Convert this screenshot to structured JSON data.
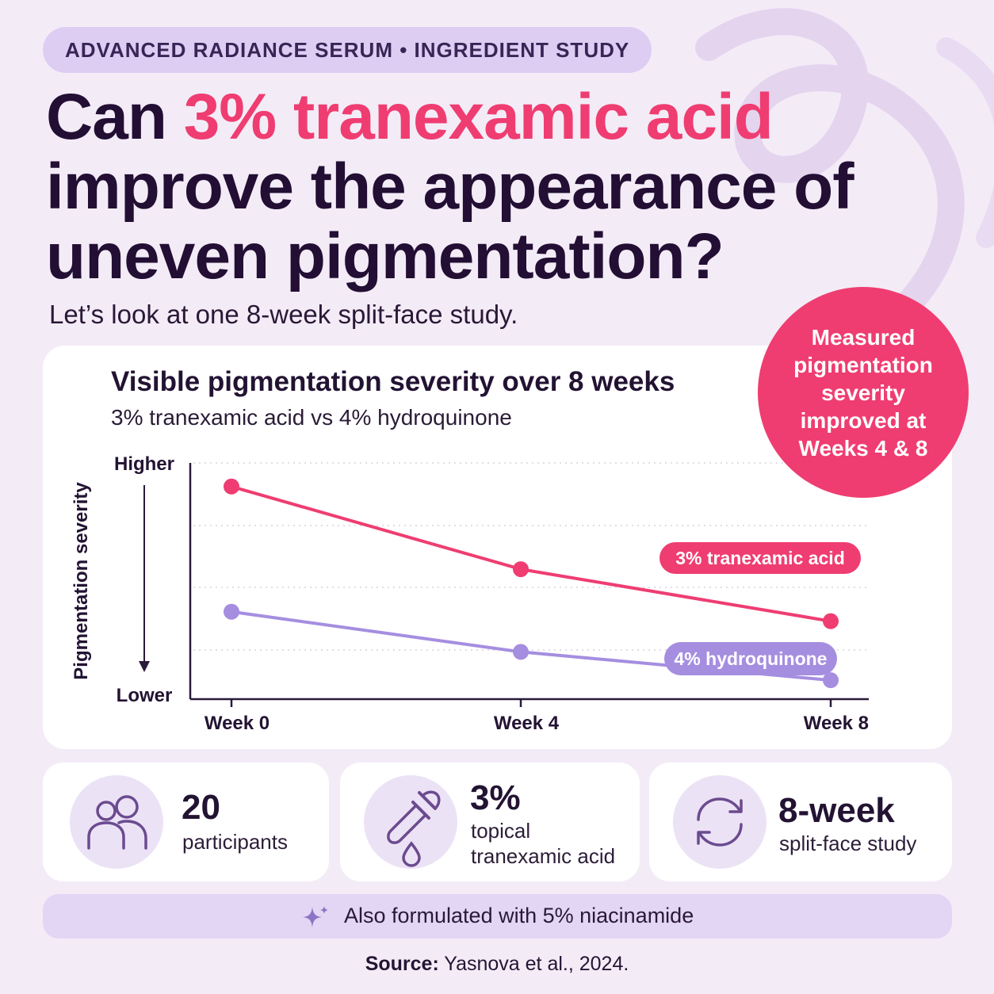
{
  "eyebrow": "ADVANCED RADIANCE SERUM • INGREDIENT STUDY",
  "headline": {
    "part1": "Can ",
    "accent": "3% tranexamic acid",
    "part2": " improve the appearance of uneven pigmentation?"
  },
  "subhead": "Let’s look at one 8-week split-face study.",
  "badge": "Measured pigmentation severity improved at Weeks 4 & 8",
  "colors": {
    "accent": "#ef3d71",
    "secondary": "#a58ee0",
    "ink": "#230e34",
    "background": "#f3ecf7"
  },
  "chart_data": {
    "type": "line",
    "title": "Visible pigmentation severity over 8 weeks",
    "subtitle": "3% tranexamic acid vs 4% hydroquinone",
    "ylabel": "Pigmentation severity",
    "y_top_label": "Higher",
    "y_bottom_label": "Lower",
    "categories": [
      "Week 0",
      "Week 4",
      "Week 8"
    ],
    "ylim": [
      0,
      100
    ],
    "grid": true,
    "series": [
      {
        "name": "3% tranexamic acid",
        "color": "#ef3d71",
        "values": [
          90,
          55,
          33
        ]
      },
      {
        "name": "4% hydroquinone",
        "color": "#a58ee0",
        "values": [
          37,
          20,
          8
        ]
      }
    ]
  },
  "stats": [
    {
      "icon": "participants-icon",
      "value": "20",
      "label": "participants"
    },
    {
      "icon": "dropper-icon",
      "value": "3%",
      "label": "topical tranexamic acid"
    },
    {
      "icon": "cycle-icon",
      "value": "8-week",
      "label": "split-face study"
    }
  ],
  "banner": {
    "icon": "sparkle-icon",
    "text": "Also formulated with 5% niacinamide"
  },
  "source": {
    "label": "Source:",
    "text": " Yasnova et al., 2024."
  }
}
